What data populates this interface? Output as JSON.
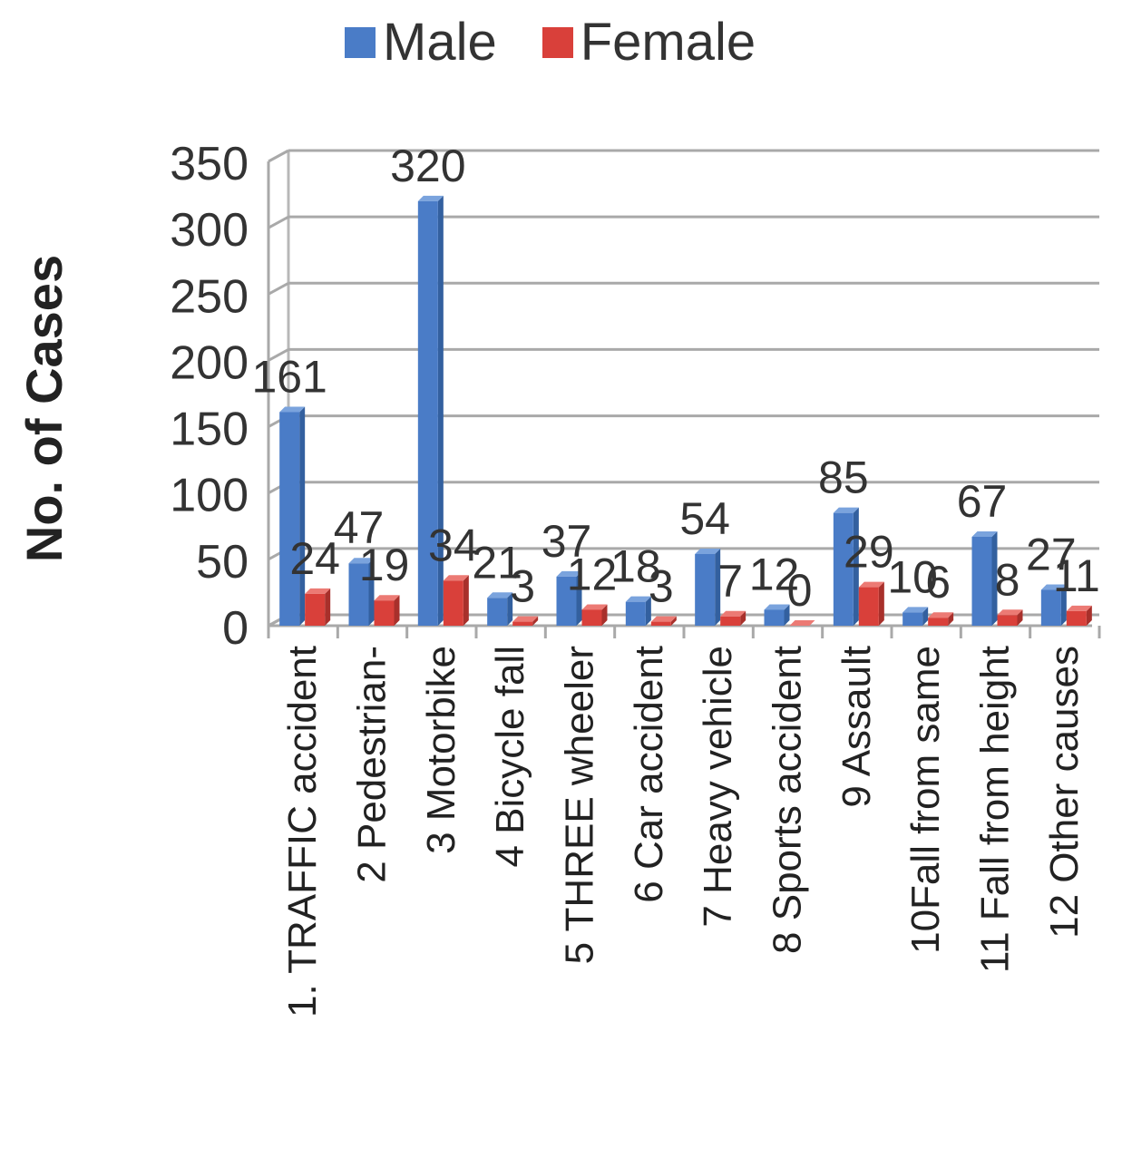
{
  "chart_data": {
    "type": "bar",
    "title": "",
    "xlabel": "",
    "ylabel": "No. of Cases",
    "ylim": [
      0,
      350
    ],
    "yticks": [
      0,
      50,
      100,
      150,
      200,
      250,
      300,
      350
    ],
    "grid": true,
    "legend_position": "top",
    "categories": [
      "1. TRAFFIC accident",
      "2 Pedestrian-",
      "3 Motorbike",
      "4 Bicycle fall",
      "5 THREE wheeler",
      "6 Car accident",
      "7 Heavy vehicle",
      "8 Sports accident",
      "9 Assault",
      "10Fall from same",
      "11 Fall from height",
      "12 Other causes"
    ],
    "series": [
      {
        "name": "Male",
        "color": "#4a7cc7",
        "values": [
          161,
          47,
          320,
          21,
          37,
          18,
          54,
          12,
          85,
          10,
          67,
          27
        ],
        "labels": [
          "161",
          "47",
          "320",
          "21",
          "37",
          "18",
          "54",
          "12",
          "85",
          "10",
          "67",
          "27"
        ]
      },
      {
        "name": "Female",
        "color": "#d9403a",
        "values": [
          24,
          19,
          34,
          3,
          12,
          3,
          7,
          0,
          29,
          6,
          8,
          11
        ],
        "labels": [
          "24",
          "19",
          "34",
          "3",
          "12",
          "3",
          "7",
          "0",
          "29",
          "6",
          "8",
          "11"
        ]
      }
    ]
  }
}
